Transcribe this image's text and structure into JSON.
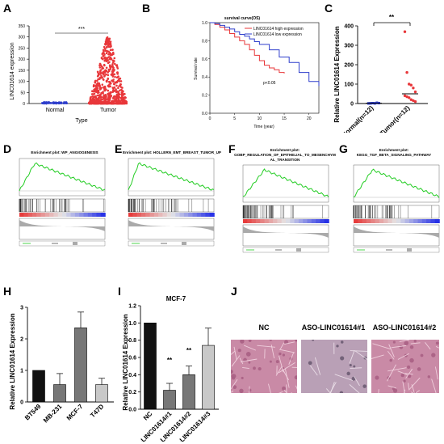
{
  "panels": {
    "A": {
      "label": "A",
      "ylabel": "LINC01614 expression",
      "xlabel": "Type",
      "sig": "***",
      "yticks": [
        "0",
        "50",
        "100",
        "150",
        "200",
        "250",
        "300",
        "350"
      ],
      "groups": [
        "Normal",
        "Tumor"
      ]
    },
    "B": {
      "label": "B",
      "title": "survival curve(OS)",
      "ylabel": "Survival rate",
      "xlabel": "Time (year)",
      "legend_high": "LINC01614 high expression",
      "legend_low": "LINC01614 low expression",
      "pval": "p<0.05",
      "xticks": [
        "0",
        "5",
        "10",
        "15",
        "20"
      ],
      "yticks": [
        "0.0",
        "0.2",
        "0.4",
        "0.6",
        "0.8",
        "1.0"
      ]
    },
    "C": {
      "label": "C",
      "ylabel": "Relative LINC01614 Expression",
      "sig": "**",
      "yticks": [
        "0",
        "100",
        "200",
        "300",
        "400"
      ],
      "groups": [
        "Normal(n=12)",
        "Tumor(n=12)"
      ]
    },
    "D": {
      "label": "D",
      "title": "Enrichment plot: WP_ANGIOGENESIS"
    },
    "E": {
      "label": "E",
      "title": "Enrichment plot: HOLLERN_EMT_BREAST_TUMOR_UP"
    },
    "F": {
      "label": "F",
      "title": "Enrichment plot:",
      "title2": "GOBP_REGULATION_OF_EPITHELIAL_TO_MESENCHYM",
      "title3": "AL_TRANSITION"
    },
    "G": {
      "label": "G",
      "title": "Enrichment plot:",
      "title2": "KEGG_TGF_BETA_SIGNALING_PATHWAY"
    },
    "H": {
      "label": "H",
      "ylabel": "Relative LINC01614 Expression",
      "yticks": [
        "0",
        "1",
        "2",
        "3"
      ]
    },
    "I": {
      "label": "I",
      "title": "MCF-7",
      "ylabel": "Relative LINC01614 Expression",
      "yticks": [
        "0.0",
        "0.2",
        "0.4",
        "0.6",
        "0.8",
        "1.0",
        "1.2"
      ],
      "sig1": "**",
      "sig2": "**"
    },
    "J": {
      "label": "J",
      "col1": "NC",
      "col2": "ASO-LINC01614#1",
      "col3": "ASO-LINC01614#2"
    }
  },
  "colors": {
    "high": "#e8373a",
    "low": "#2f3fcc",
    "bar_black": "#111111",
    "bar_dark": "#777777",
    "bar_light": "#c8c8c8",
    "gsea_green": "#22cc22",
    "micro_bg": "#c98aa6"
  },
  "chart_data": [
    {
      "type": "scatter",
      "panel": "A",
      "categories": [
        "Normal",
        "Tumor"
      ],
      "ylim": [
        0,
        350
      ],
      "ylabel": "LINC01614 expression",
      "xlabel": "Type"
    },
    {
      "type": "line",
      "panel": "B",
      "title": "survival curve(OS)",
      "xlabel": "Time (year)",
      "ylabel": "Survival rate",
      "xlim": [
        0,
        22
      ],
      "ylim": [
        0,
        1
      ],
      "series": [
        {
          "name": "LINC01614 high expression",
          "x": [
            0,
            1,
            2,
            3,
            4,
            5,
            6,
            7,
            8,
            9,
            10,
            11,
            12,
            13,
            14,
            15
          ],
          "y": [
            1.0,
            0.98,
            0.95,
            0.92,
            0.88,
            0.84,
            0.8,
            0.76,
            0.7,
            0.64,
            0.58,
            0.53,
            0.5,
            0.48,
            0.45,
            0.44
          ]
        },
        {
          "name": "LINC01614 low expression",
          "x": [
            0,
            1,
            2,
            3,
            4,
            5,
            6,
            7,
            8,
            9,
            10,
            12,
            14,
            16,
            18,
            20,
            22
          ],
          "y": [
            1.0,
            0.99,
            0.97,
            0.95,
            0.93,
            0.9,
            0.87,
            0.85,
            0.82,
            0.79,
            0.76,
            0.7,
            0.62,
            0.56,
            0.45,
            0.35,
            0.3
          ]
        }
      ]
    },
    {
      "type": "scatter",
      "panel": "C",
      "categories": [
        "Normal(n=12)",
        "Tumor(n=12)"
      ],
      "ylim": [
        0,
        400
      ],
      "ylabel": "Relative LINC01614 Expression",
      "series": [
        {
          "values": [
            1,
            1,
            2,
            1,
            3,
            2,
            0,
            1,
            2,
            1,
            4,
            2
          ]
        },
        {
          "values": [
            370,
            160,
            100,
            95,
            80,
            60,
            40,
            35,
            30,
            20,
            15,
            10
          ]
        }
      ]
    },
    {
      "type": "bar",
      "panel": "H",
      "categories": [
        "BT549",
        "MB-231",
        "MCF-7",
        "T47D"
      ],
      "values": [
        1.0,
        0.55,
        2.35,
        0.55
      ],
      "errors": [
        0,
        0.35,
        0.5,
        0.2
      ],
      "ylim": [
        0,
        3
      ],
      "ylabel": "Relative LINC01614 Expression"
    },
    {
      "type": "bar",
      "panel": "I",
      "title": "MCF-7",
      "categories": [
        "NC",
        "ASO-LINC01614#1",
        "ASO-LINC01614#2",
        "ASO-LINC01614#3"
      ],
      "values": [
        1.0,
        0.22,
        0.4,
        0.74
      ],
      "errors": [
        0,
        0.08,
        0.1,
        0.2
      ],
      "ylim": [
        0,
        1.2
      ],
      "ylabel": "Relative LINC01614 Expression"
    }
  ]
}
